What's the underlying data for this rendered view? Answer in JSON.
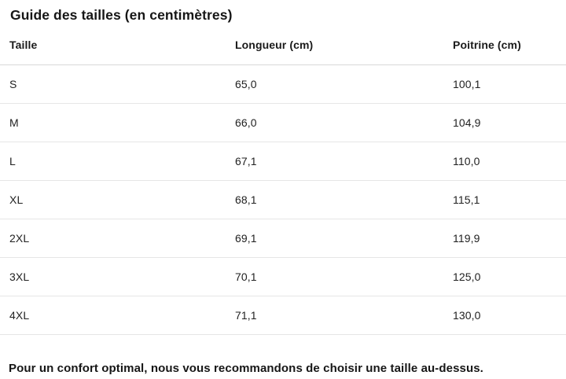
{
  "title": "Guide des tailles (en centimètres)",
  "table": {
    "columns": {
      "size": "Taille",
      "length": "Longueur (cm)",
      "chest": "Poitrine (cm)"
    },
    "rows": [
      {
        "size": "S",
        "length": "65,0",
        "chest": "100,1"
      },
      {
        "size": "M",
        "length": "66,0",
        "chest": "104,9"
      },
      {
        "size": "L",
        "length": "67,1",
        "chest": "110,0"
      },
      {
        "size": "XL",
        "length": "68,1",
        "chest": "115,1"
      },
      {
        "size": "2XL",
        "length": "69,1",
        "chest": "119,9"
      },
      {
        "size": "3XL",
        "length": "70,1",
        "chest": "125,0"
      },
      {
        "size": "4XL",
        "length": "71,1",
        "chest": "130,0"
      }
    ]
  },
  "footer_note": "Pour un confort optimal, nous vous recommandons de choisir une taille au-dessus.",
  "colors": {
    "text": "#1a1a1a",
    "row_divider": "#e6e6e6",
    "header_divider": "#d8d8d8",
    "background": "#ffffff"
  }
}
